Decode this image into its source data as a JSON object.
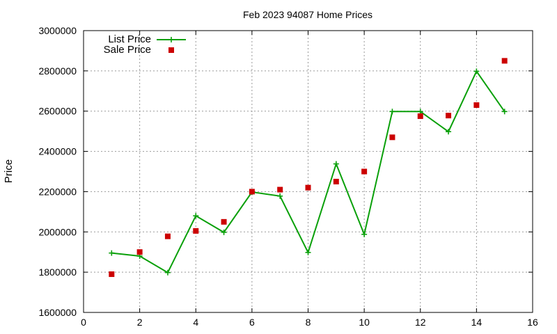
{
  "chart_data": {
    "type": "line",
    "title": "Feb 2023 94087 Home Prices",
    "xlabel": "",
    "ylabel": "Price",
    "xlim": [
      0,
      16
    ],
    "ylim": [
      1600000,
      3000000
    ],
    "xticks": [
      0,
      2,
      4,
      6,
      8,
      10,
      12,
      14,
      16
    ],
    "xtick_labels": [
      "0",
      "2",
      "4",
      "6",
      "8",
      "10",
      "12",
      "14",
      "16"
    ],
    "yticks": [
      1600000,
      1800000,
      2000000,
      2200000,
      2400000,
      2600000,
      2800000,
      3000000
    ],
    "ytick_labels": [
      "1600000",
      "1800000",
      "2000000",
      "2200000",
      "2400000",
      "2600000",
      "2800000",
      "3000000"
    ],
    "grid": true,
    "legend_position": "top-left",
    "series": [
      {
        "name": "List Price",
        "style": "line-with-plus-markers",
        "color": "#0aa00a",
        "x": [
          1,
          2,
          3,
          4,
          5,
          6,
          7,
          8,
          9,
          10,
          11,
          12,
          13,
          14,
          15
        ],
        "y": [
          1895000,
          1880000,
          1798000,
          2080000,
          1998000,
          2198000,
          2178000,
          1898000,
          2338000,
          1988000,
          2598000,
          2598000,
          2498000,
          2798000,
          2598000
        ]
      },
      {
        "name": "Sale Price",
        "style": "square-points",
        "color": "#cc0000",
        "x": [
          1,
          2,
          3,
          4,
          5,
          6,
          7,
          8,
          9,
          10,
          11,
          12,
          13,
          14,
          15
        ],
        "y": [
          1790000,
          1900000,
          1978000,
          2005000,
          2050000,
          2200000,
          2210000,
          2220000,
          2250000,
          2300000,
          2470000,
          2575000,
          2578000,
          2630000,
          2850000
        ]
      }
    ]
  }
}
